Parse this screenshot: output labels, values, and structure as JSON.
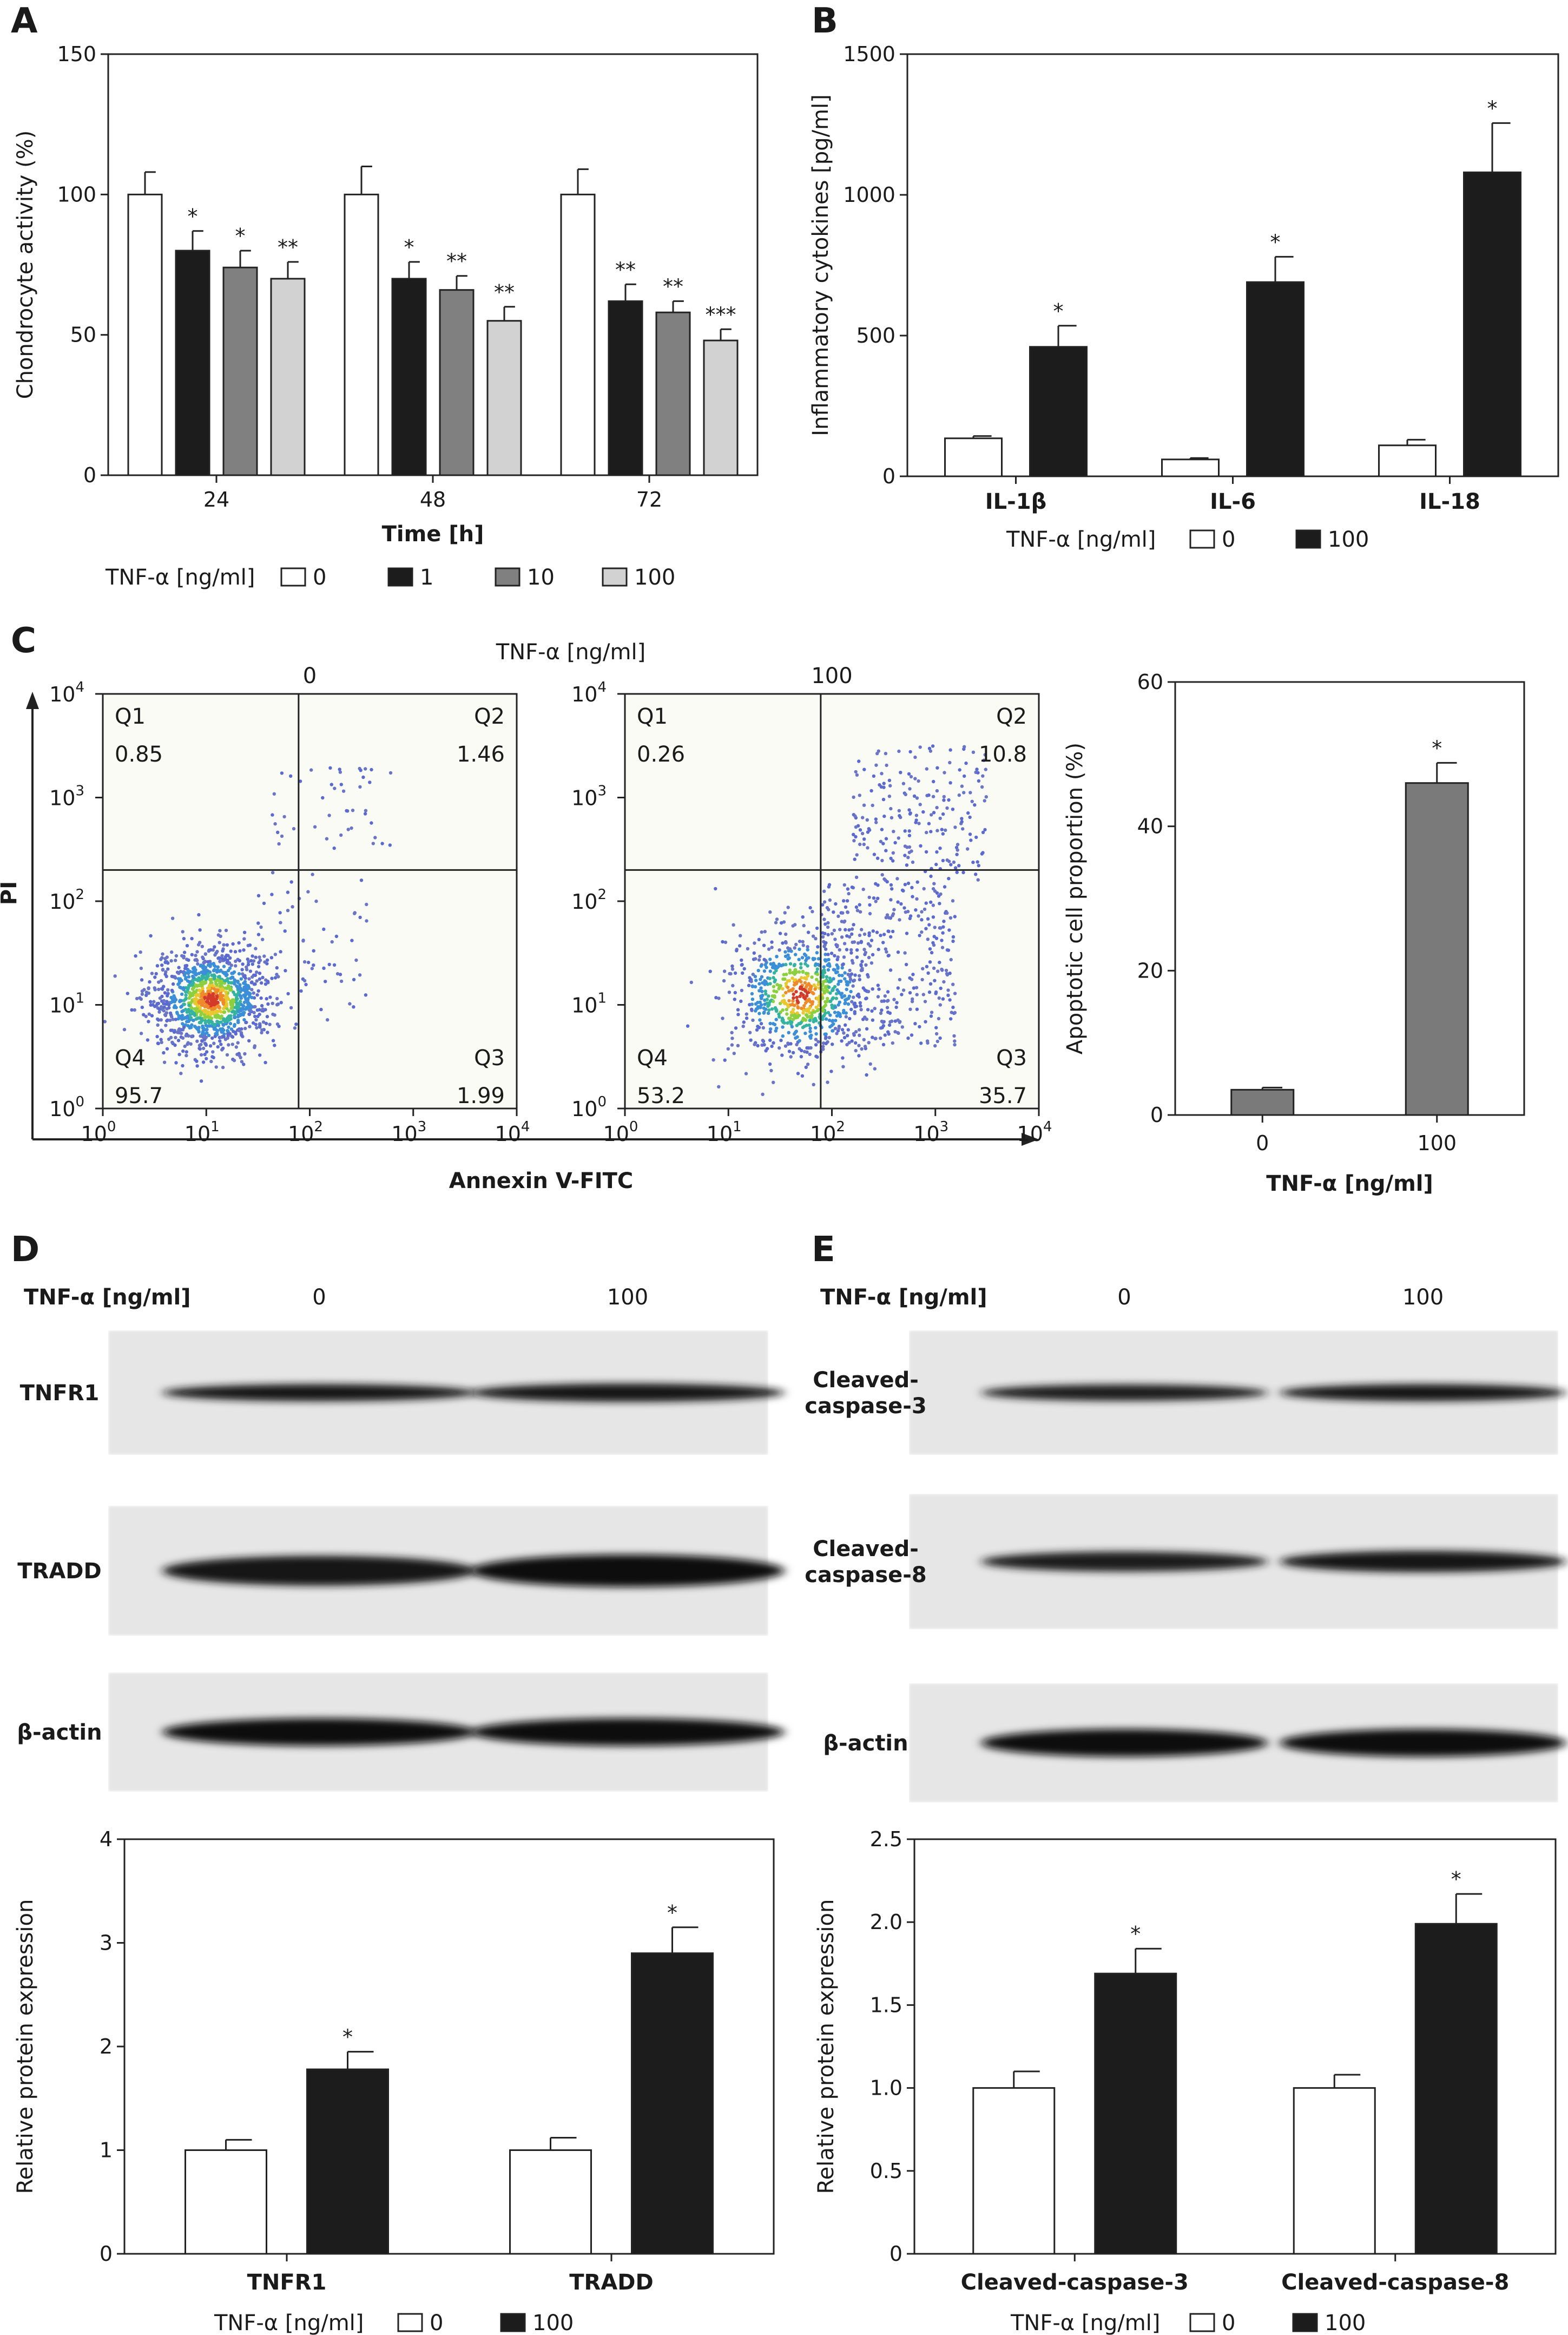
{
  "panel_letters": [
    "A",
    "B",
    "C",
    "D",
    "E"
  ],
  "colors": {
    "white_bar": "#ffffff",
    "black_bar": "#1c1c1c",
    "dark_gray_bar": "#808080",
    "light_gray_bar": "#d2d2d2",
    "mid_gray_bar": "#7a7a7a",
    "axis": "#222222",
    "blot_bg": "#e6e6e6",
    "flow_bg": "#fbfbf5"
  },
  "chart_data": [
    {
      "id": "A",
      "type": "bar",
      "ylabel": "Chondrocyte activity (%)",
      "xlabel": "Time [h]",
      "ylim": [
        0,
        150
      ],
      "yticks": [
        "0",
        "50",
        "100",
        "150"
      ],
      "categories": [
        "24",
        "48",
        "72"
      ],
      "legend_title": "TNF-α [ng/ml]",
      "series": [
        {
          "name": "0",
          "color": "#ffffff",
          "values": [
            100,
            100,
            100
          ],
          "errors": [
            8,
            10,
            9
          ],
          "stars": [
            "",
            "",
            ""
          ]
        },
        {
          "name": "1",
          "color": "#1c1c1c",
          "values": [
            80,
            70,
            62
          ],
          "errors": [
            7,
            6,
            6
          ],
          "stars": [
            "*",
            "*",
            "**"
          ]
        },
        {
          "name": "10",
          "color": "#808080",
          "values": [
            74,
            66,
            58
          ],
          "errors": [
            6,
            5,
            4
          ],
          "stars": [
            "*",
            "**",
            "**"
          ]
        },
        {
          "name": "100",
          "color": "#d2d2d2",
          "values": [
            70,
            55,
            48
          ],
          "errors": [
            6,
            5,
            4
          ],
          "stars": [
            "**",
            "**",
            "***"
          ]
        }
      ]
    },
    {
      "id": "B",
      "type": "bar",
      "ylabel": "Inflammatory cytokines [pg/ml]",
      "xlabel": "",
      "ylim": [
        0,
        1500
      ],
      "yticks": [
        "0",
        "500",
        "1000",
        "1500"
      ],
      "categories": [
        "IL-1β",
        "IL-6",
        "IL-18"
      ],
      "legend_title": "TNF-α [ng/ml]",
      "series": [
        {
          "name": "0",
          "color": "#ffffff",
          "values": [
            135,
            60,
            110
          ],
          "errors": [
            8,
            5,
            20
          ],
          "stars": [
            "",
            "",
            ""
          ]
        },
        {
          "name": "100",
          "color": "#1c1c1c",
          "values": [
            460,
            690,
            1080
          ],
          "errors": [
            75,
            90,
            175
          ],
          "stars": [
            "*",
            "*",
            "*"
          ]
        }
      ]
    },
    {
      "id": "C-flow",
      "type": "scatter",
      "title": "TNF-α [ng/ml]",
      "xlabel": "Annexin V-FITC",
      "ylabel": "PI",
      "xlim": [
        1,
        10000
      ],
      "ylim": [
        1,
        10000
      ],
      "log_scale": true,
      "tick_mantissa": "10",
      "tick_exponents": [
        "0",
        "1",
        "2",
        "3",
        "4"
      ],
      "plots": [
        {
          "label": "0",
          "quadrants": {
            "Q1": "0.85",
            "Q2": "1.46",
            "Q3": "1.99",
            "Q4": "95.7"
          }
        },
        {
          "label": "100",
          "quadrants": {
            "Q1": "0.26",
            "Q2": "10.8",
            "Q3": "35.7",
            "Q4": "53.2"
          }
        }
      ]
    },
    {
      "id": "C-bar",
      "type": "bar",
      "ylabel": "Apoptotic cell proportion (%)",
      "xlabel": "TNF-α [ng/ml]",
      "ylim": [
        0,
        60
      ],
      "yticks": [
        "0",
        "20",
        "40",
        "60"
      ],
      "categories": [
        "0",
        "100"
      ],
      "series": [
        {
          "color": "#7a7a7a",
          "values": [
            3.5,
            46
          ],
          "errors": [
            0.3,
            2.8
          ],
          "stars": [
            "",
            "*"
          ]
        }
      ]
    },
    {
      "id": "D",
      "type": "bar",
      "ylabel": "Relative protein expression",
      "xlabel": "",
      "ylim": [
        0,
        4
      ],
      "yticks": [
        "0",
        "1",
        "2",
        "3",
        "4"
      ],
      "categories": [
        "TNFR1",
        "TRADD"
      ],
      "legend_title": "TNF-α [ng/ml]",
      "series": [
        {
          "name": "0",
          "color": "#ffffff",
          "values": [
            1.0,
            1.0
          ],
          "errors": [
            0.1,
            0.12
          ],
          "stars": [
            "",
            ""
          ]
        },
        {
          "name": "100",
          "color": "#1c1c1c",
          "values": [
            1.78,
            2.9
          ],
          "errors": [
            0.17,
            0.25
          ],
          "stars": [
            "*",
            "*"
          ]
        }
      ]
    },
    {
      "id": "E",
      "type": "bar",
      "ylabel": "Relative protein expression",
      "xlabel": "",
      "ylim": [
        0,
        2.5
      ],
      "yticks": [
        "0",
        "0.5",
        "1.0",
        "1.5",
        "2.0",
        "2.5"
      ],
      "categories": [
        "Cleaved-caspase-3",
        "Cleaved-caspase-8"
      ],
      "legend_title": "TNF-α [ng/ml]",
      "series": [
        {
          "name": "0",
          "color": "#ffffff",
          "values": [
            1.0,
            1.0
          ],
          "errors": [
            0.1,
            0.08
          ],
          "stars": [
            "",
            ""
          ]
        },
        {
          "name": "100",
          "color": "#1c1c1c",
          "values": [
            1.69,
            1.99
          ],
          "errors": [
            0.15,
            0.18
          ],
          "stars": [
            "*",
            "*"
          ]
        }
      ]
    }
  ],
  "blots": {
    "D": {
      "header_label": "TNF-α [ng/ml]",
      "lanes": [
        "0",
        "100"
      ],
      "rows": [
        {
          "label": "TNFR1",
          "band_intensity": [
            0.7,
            0.85
          ]
        },
        {
          "label": "TRADD",
          "band_intensity": [
            0.8,
            1.0
          ]
        },
        {
          "label": "β-actin",
          "band_intensity": [
            0.95,
            0.95
          ]
        }
      ]
    },
    "E": {
      "header_label": "TNF-α [ng/ml]",
      "lanes": [
        "0",
        "100"
      ],
      "rows": [
        {
          "label": "Cleaved-\ncaspase-3",
          "band_intensity": [
            0.6,
            0.7
          ]
        },
        {
          "label": "Cleaved-\ncaspase-8",
          "band_intensity": [
            0.6,
            0.75
          ]
        },
        {
          "label": "β-actin",
          "band_intensity": [
            0.95,
            0.95
          ]
        }
      ]
    }
  }
}
